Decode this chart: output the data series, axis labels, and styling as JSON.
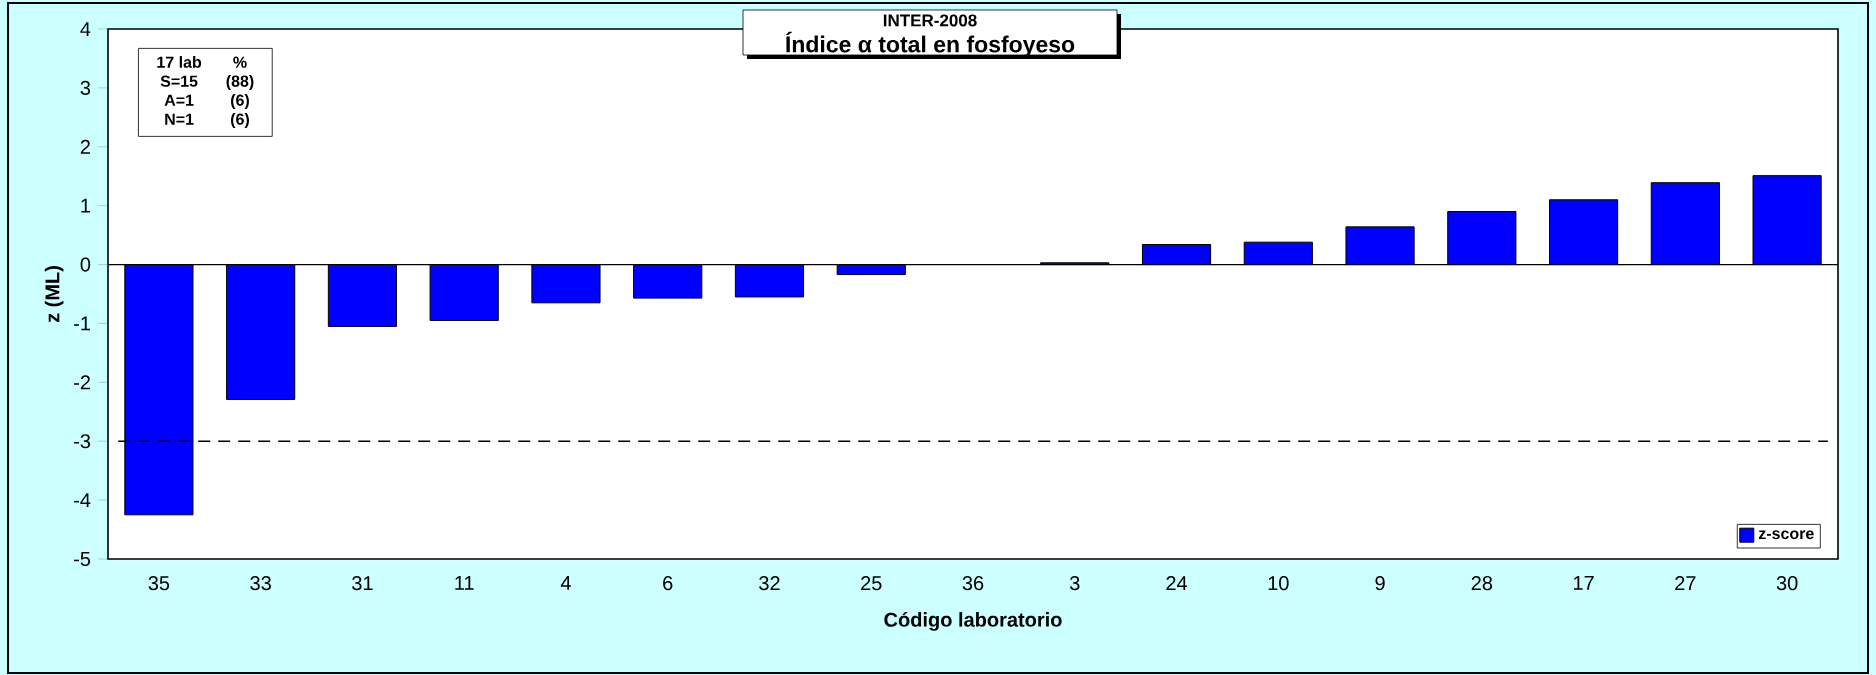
{
  "chart_data": {
    "type": "bar",
    "title": "INTER-2008",
    "subtitle": "Índice α total en fosfoyeso",
    "xlabel": "Código laboratorio",
    "ylabel": "z (ML)",
    "categories": [
      "35",
      "33",
      "31",
      "11",
      "4",
      "6",
      "32",
      "25",
      "36",
      "3",
      "24",
      "10",
      "9",
      "28",
      "17",
      "27",
      "30"
    ],
    "series": [
      {
        "name": "z-score",
        "color": "#0000ff",
        "values": [
          -4.25,
          -2.29,
          -1.05,
          -0.95,
          -0.65,
          -0.57,
          -0.55,
          -0.17,
          null,
          0.03,
          0.34,
          0.38,
          0.64,
          0.9,
          1.1,
          1.39,
          1.51
        ]
      }
    ],
    "ylim": [
      -5,
      4
    ],
    "yticks": [
      -5,
      -4,
      -3,
      -2,
      -1,
      0,
      1,
      2,
      3,
      4
    ],
    "ref_lines": [
      {
        "axis": "y",
        "value": -3,
        "line_style": "dashed",
        "color": "#000000"
      }
    ],
    "annotations": [
      "17 lab",
      "%",
      "S=15",
      "(88)",
      "A=1",
      "(6)",
      "N=1",
      "(6)"
    ],
    "legend": "bottom right",
    "grid": false
  }
}
